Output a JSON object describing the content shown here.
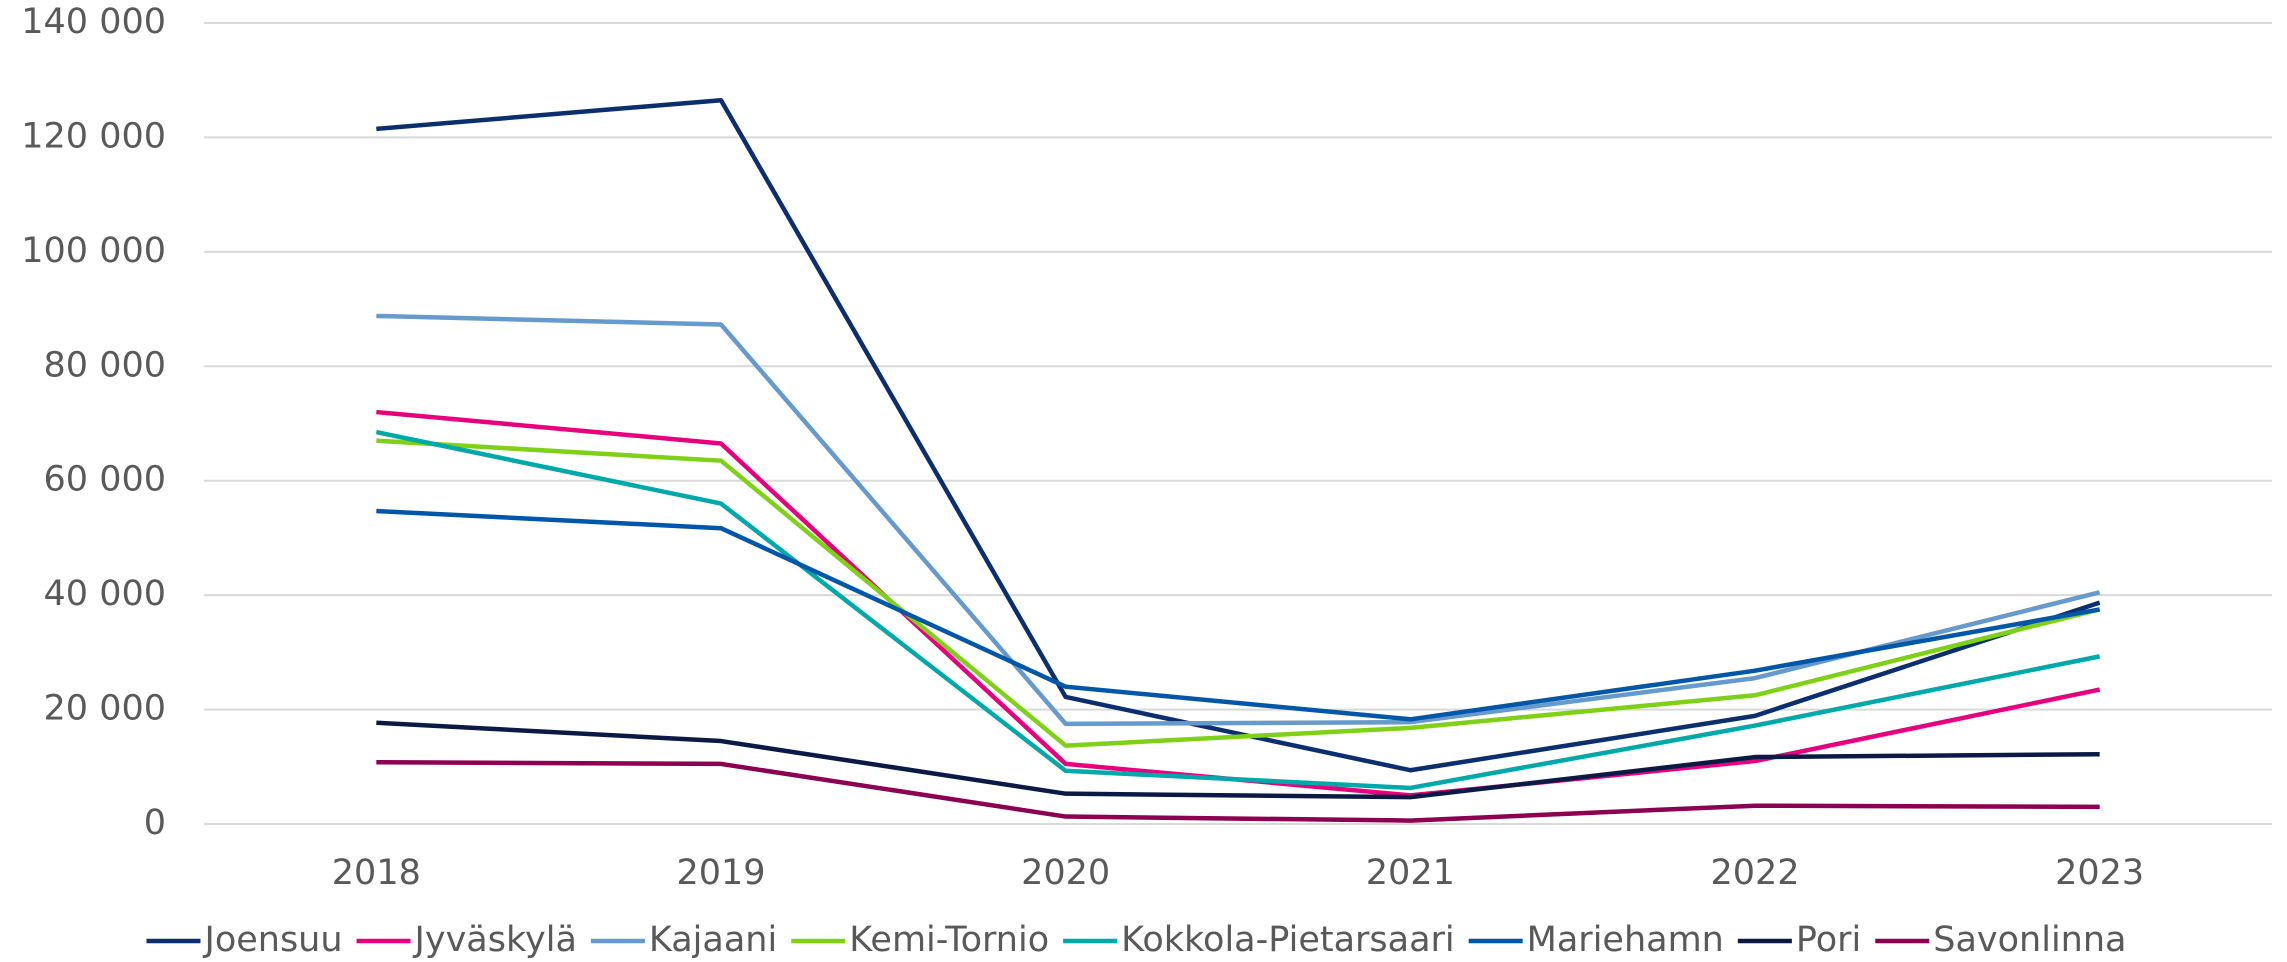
{
  "chart_data": {
    "type": "line",
    "categories": [
      "2018",
      "2019",
      "2020",
      "2021",
      "2022",
      "2023"
    ],
    "series": [
      {
        "name": "Joensuu",
        "color": "#0b2e6f",
        "values": [
          121500,
          126500,
          22200,
          9400,
          18900,
          38700
        ]
      },
      {
        "name": "Jyväskylä",
        "color": "#e6007e",
        "values": [
          72000,
          66500,
          10500,
          5000,
          11000,
          23500
        ]
      },
      {
        "name": "Kajaani",
        "color": "#6699cc",
        "values": [
          88800,
          87300,
          17500,
          17800,
          25500,
          40500
        ]
      },
      {
        "name": "Kemi-Tornio",
        "color": "#7fd118",
        "values": [
          67000,
          63500,
          13700,
          16800,
          22500,
          37500
        ]
      },
      {
        "name": "Kokkola-Pietarsaari",
        "color": "#00a9a9",
        "values": [
          68500,
          56000,
          9300,
          6300,
          17200,
          29300
        ]
      },
      {
        "name": "Mariehamn",
        "color": "#0057a8",
        "values": [
          54700,
          51700,
          24000,
          18300,
          26800,
          37500
        ]
      },
      {
        "name": "Pori",
        "color": "#0a1a45",
        "values": [
          17700,
          14500,
          5300,
          4700,
          11700,
          12200
        ]
      },
      {
        "name": "Savonlinna",
        "color": "#8b0050",
        "values": [
          10800,
          10500,
          1300,
          600,
          3200,
          3000
        ]
      }
    ],
    "ylim": [
      0,
      140000
    ],
    "yticks": [
      0,
      {
        "value": 20000,
        "label": "20 000"
      },
      {
        "value": 40000,
        "label": "40 000"
      },
      {
        "value": 60000,
        "label": "60 000"
      },
      {
        "value": 80000,
        "label": "80 000"
      },
      {
        "value": 100000,
        "label": "100 000"
      },
      {
        "value": 120000,
        "label": "120 000"
      },
      {
        "value": 140000,
        "label": "140 000"
      }
    ],
    "grid": true,
    "legend": "bottom"
  }
}
